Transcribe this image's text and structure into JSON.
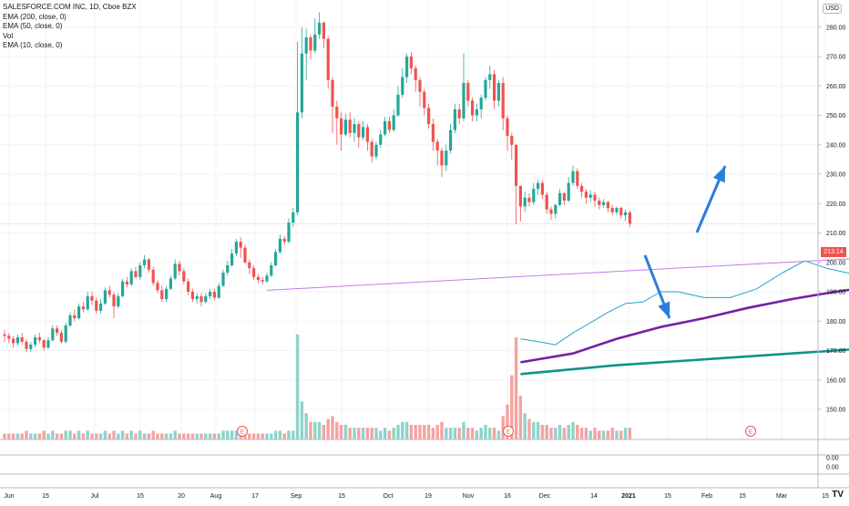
{
  "legend": {
    "symbol": "SALESFORCE.COM INC, 1D, Cboe BZX",
    "ema200": "EMA (200, close, 0)",
    "ema50": "EMA (50, close, 0)",
    "vol": "Vol",
    "ema10": "EMA (10, close, 0)"
  },
  "currency_button": "USD",
  "last_price_label": "213.14",
  "earnings_marker": "E",
  "logo_text": "TV",
  "colors": {
    "up": "#26a69a",
    "down": "#ef5350",
    "vol_up": "#8fd3cb",
    "vol_down": "#f5a3a1",
    "ema200": "#0f938a",
    "ema50": "#7421a5",
    "ema10": "#2aa1c9",
    "trendline": "#c67ae8",
    "arrow": "#2a7ddc",
    "zone": "#e1bdf0"
  },
  "chart_data": {
    "type": "candlestick",
    "x_tick_labels": [
      "Jun",
      "15",
      "Jul",
      "15",
      "20",
      "Aug",
      "17",
      "Sep",
      "15",
      "Oct",
      "19",
      "Nov",
      "16",
      "Dec",
      "14",
      "2021",
      "15",
      "Feb",
      "15",
      "Mar",
      "15"
    ],
    "y_tick_labels": [
      "150.00",
      "160.00",
      "170.00",
      "180.00",
      "190.00",
      "200.00",
      "210.00",
      "220.00",
      "230.00",
      "240.00",
      "250.00",
      "260.00",
      "270.00",
      "280.00",
      "290.00"
    ],
    "ylim": [
      148,
      296
    ],
    "sub_pane_labels": [
      "0.00",
      "0.00"
    ],
    "last_price": 213.14,
    "earnings_markers": [
      "Aug 25 2020",
      "Dec 1 2020",
      "Mar 1 2021"
    ],
    "points": [
      [
        175.5,
        175.0,
        177.0,
        173.0,
        2
      ],
      [
        175.0,
        174.0,
        176.0,
        172.5,
        2
      ],
      [
        174.0,
        172.5,
        175.0,
        171.0,
        2
      ],
      [
        172.5,
        174.5,
        175.5,
        171.5,
        2
      ],
      [
        174.5,
        173.0,
        176.0,
        172.0,
        2
      ],
      [
        173.0,
        170.5,
        174.0,
        169.5,
        3
      ],
      [
        170.5,
        172.0,
        173.0,
        169.5,
        2
      ],
      [
        172.0,
        174.5,
        175.5,
        171.0,
        2
      ],
      [
        174.5,
        173.5,
        176.0,
        172.5,
        2
      ],
      [
        173.5,
        171.0,
        174.0,
        170.0,
        3
      ],
      [
        171.0,
        173.5,
        174.5,
        170.5,
        2
      ],
      [
        173.5,
        177.5,
        178.5,
        173.0,
        3
      ],
      [
        177.5,
        176.0,
        178.5,
        175.0,
        2
      ],
      [
        176.0,
        173.0,
        177.0,
        172.5,
        2
      ],
      [
        173.0,
        178.5,
        179.5,
        172.5,
        3
      ],
      [
        178.5,
        182.0,
        183.0,
        178.0,
        3
      ],
      [
        182.0,
        181.0,
        184.0,
        180.0,
        2
      ],
      [
        181.0,
        185.0,
        186.0,
        180.5,
        3
      ],
      [
        185.0,
        184.0,
        186.5,
        183.0,
        2
      ],
      [
        184.0,
        188.5,
        190.0,
        183.5,
        3
      ],
      [
        188.5,
        187.0,
        190.0,
        185.5,
        2
      ],
      [
        187.0,
        183.5,
        188.0,
        182.5,
        2
      ],
      [
        183.5,
        186.0,
        187.5,
        182.5,
        2
      ],
      [
        186.0,
        190.5,
        191.5,
        185.5,
        3
      ],
      [
        190.5,
        189.0,
        192.0,
        188.0,
        2
      ],
      [
        189.0,
        185.0,
        190.0,
        181.0,
        3
      ],
      [
        185.0,
        188.5,
        189.5,
        184.5,
        2
      ],
      [
        188.5,
        193.5,
        194.5,
        188.0,
        3
      ],
      [
        193.5,
        192.5,
        195.0,
        191.5,
        2
      ],
      [
        192.5,
        197.0,
        198.0,
        192.0,
        3
      ],
      [
        197.0,
        195.0,
        198.5,
        194.5,
        2
      ],
      [
        195.0,
        199.0,
        200.0,
        194.0,
        3
      ],
      [
        199.0,
        201.0,
        202.5,
        198.0,
        2
      ],
      [
        201.0,
        197.5,
        201.5,
        196.5,
        2
      ],
      [
        197.5,
        193.0,
        198.5,
        192.0,
        3
      ],
      [
        193.0,
        190.5,
        194.0,
        189.5,
        2
      ],
      [
        190.5,
        187.5,
        192.0,
        186.5,
        2
      ],
      [
        187.5,
        191.0,
        192.0,
        186.5,
        2
      ],
      [
        191.0,
        194.5,
        195.5,
        190.5,
        2
      ],
      [
        194.5,
        199.5,
        201.0,
        194.0,
        3
      ],
      [
        199.5,
        197.0,
        200.5,
        195.5,
        2
      ],
      [
        197.0,
        193.5,
        198.0,
        192.5,
        2
      ],
      [
        193.5,
        190.0,
        194.5,
        189.0,
        2
      ],
      [
        190.0,
        187.5,
        191.0,
        186.5,
        2
      ],
      [
        187.5,
        188.5,
        189.5,
        186.0,
        2
      ],
      [
        188.5,
        186.5,
        189.5,
        185.0,
        2
      ],
      [
        186.5,
        188.5,
        189.5,
        186.0,
        2
      ],
      [
        188.5,
        190.0,
        191.0,
        187.5,
        2
      ],
      [
        190.0,
        188.0,
        191.0,
        187.0,
        2
      ],
      [
        188.0,
        192.0,
        193.0,
        187.5,
        2
      ],
      [
        192.0,
        196.5,
        197.5,
        191.5,
        3
      ],
      [
        196.5,
        199.0,
        200.5,
        195.5,
        3
      ],
      [
        199.0,
        203.0,
        204.5,
        198.5,
        3
      ],
      [
        203.0,
        207.0,
        208.0,
        202.0,
        3
      ],
      [
        207.0,
        205.0,
        208.5,
        201.5,
        2
      ],
      [
        205.0,
        200.0,
        206.0,
        199.5,
        3
      ],
      [
        200.0,
        198.0,
        201.0,
        196.0,
        2
      ],
      [
        198.0,
        195.0,
        199.0,
        194.0,
        2
      ],
      [
        195.0,
        194.0,
        196.0,
        193.0,
        2
      ],
      [
        194.0,
        193.5,
        195.0,
        192.5,
        2
      ],
      [
        193.5,
        195.5,
        196.5,
        193.0,
        2
      ],
      [
        195.5,
        199.0,
        200.0,
        195.0,
        2
      ],
      [
        199.0,
        203.5,
        204.5,
        198.5,
        3
      ],
      [
        203.5,
        208.0,
        209.5,
        203.0,
        3
      ],
      [
        208.0,
        207.0,
        209.0,
        206.0,
        2
      ],
      [
        207.0,
        213.5,
        215.0,
        206.5,
        3
      ],
      [
        213.5,
        217.0,
        218.5,
        212.0,
        3
      ],
      [
        217.0,
        251.0,
        275.0,
        216.0,
        36
      ],
      [
        251.0,
        271.0,
        280.0,
        249.0,
        13
      ],
      [
        271.0,
        276.5,
        279.5,
        262.0,
        9
      ],
      [
        276.5,
        272.0,
        277.5,
        269.0,
        6
      ],
      [
        272.0,
        277.5,
        283.0,
        271.0,
        6
      ],
      [
        277.5,
        281.5,
        285.0,
        276.0,
        6
      ],
      [
        281.5,
        276.0,
        282.0,
        273.0,
        5
      ],
      [
        276.0,
        262.0,
        277.0,
        259.0,
        7
      ],
      [
        262.0,
        253.0,
        263.0,
        244.0,
        8
      ],
      [
        253.0,
        249.0,
        255.0,
        240.0,
        6
      ],
      [
        249.0,
        243.5,
        251.0,
        238.0,
        5
      ],
      [
        243.5,
        248.5,
        250.5,
        243.0,
        5
      ],
      [
        248.5,
        244.0,
        251.0,
        242.5,
        4
      ],
      [
        244.0,
        247.0,
        249.0,
        241.0,
        4
      ],
      [
        247.0,
        242.5,
        248.0,
        239.0,
        4
      ],
      [
        242.5,
        246.0,
        248.0,
        241.5,
        4
      ],
      [
        246.0,
        241.0,
        247.0,
        238.0,
        4
      ],
      [
        241.0,
        236.0,
        242.0,
        234.0,
        4
      ],
      [
        236.0,
        240.0,
        241.0,
        235.0,
        4
      ],
      [
        240.0,
        243.5,
        245.0,
        239.0,
        3
      ],
      [
        243.5,
        248.0,
        249.5,
        243.0,
        4
      ],
      [
        248.0,
        245.0,
        249.5,
        244.0,
        3
      ],
      [
        245.0,
        250.0,
        252.0,
        244.5,
        4
      ],
      [
        250.0,
        257.0,
        260.0,
        249.5,
        5
      ],
      [
        257.0,
        263.0,
        266.0,
        256.0,
        6
      ],
      [
        263.0,
        270.0,
        271.0,
        261.0,
        6
      ],
      [
        270.0,
        266.0,
        271.5,
        264.0,
        5
      ],
      [
        266.0,
        262.0,
        267.0,
        258.0,
        5
      ],
      [
        262.0,
        258.0,
        263.0,
        253.0,
        5
      ],
      [
        258.0,
        252.5,
        259.0,
        250.0,
        5
      ],
      [
        252.5,
        247.0,
        254.0,
        245.5,
        5
      ],
      [
        247.0,
        241.0,
        249.0,
        238.0,
        4
      ],
      [
        241.0,
        238.0,
        242.0,
        233.0,
        5
      ],
      [
        238.0,
        233.0,
        239.0,
        229.0,
        6
      ],
      [
        233.0,
        238.0,
        240.0,
        231.0,
        4
      ],
      [
        238.0,
        245.0,
        247.0,
        237.0,
        4
      ],
      [
        245.0,
        252.0,
        254.0,
        244.0,
        4
      ],
      [
        252.0,
        249.0,
        254.0,
        247.0,
        4
      ],
      [
        249.0,
        261.0,
        271.0,
        248.0,
        6
      ],
      [
        261.0,
        255.0,
        262.0,
        253.0,
        4
      ],
      [
        255.0,
        250.0,
        256.0,
        248.0,
        4
      ],
      [
        250.0,
        252.0,
        254.0,
        248.0,
        3
      ],
      [
        252.0,
        256.0,
        257.0,
        249.0,
        4
      ],
      [
        256.0,
        262.0,
        263.0,
        255.0,
        5
      ],
      [
        262.0,
        264.0,
        267.0,
        259.0,
        4
      ],
      [
        264.0,
        255.0,
        265.5,
        252.0,
        4
      ],
      [
        255.0,
        261.0,
        262.0,
        253.0,
        3
      ],
      [
        261.0,
        249.0,
        263.0,
        245.0,
        8
      ],
      [
        249.0,
        243.0,
        250.0,
        238.0,
        12
      ],
      [
        243.0,
        240.0,
        244.0,
        235.0,
        22
      ],
      [
        240.0,
        226.0,
        227.0,
        213.0,
        35
      ],
      [
        226.0,
        219.0,
        222.0,
        214.0,
        15
      ],
      [
        219.0,
        222.0,
        224.0,
        217.0,
        9
      ],
      [
        222.0,
        220.5,
        223.5,
        219.0,
        7
      ],
      [
        220.5,
        225.0,
        227.0,
        219.5,
        6
      ],
      [
        225.0,
        227.0,
        228.0,
        223.0,
        6
      ],
      [
        227.0,
        223.0,
        228.0,
        221.5,
        5
      ],
      [
        223.0,
        218.0,
        224.0,
        216.5,
        5
      ],
      [
        218.0,
        216.5,
        219.0,
        214.5,
        4
      ],
      [
        216.5,
        219.5,
        220.0,
        215.0,
        4
      ],
      [
        219.5,
        223.5,
        225.0,
        219.0,
        5
      ],
      [
        223.5,
        221.0,
        224.0,
        219.5,
        4
      ],
      [
        221.0,
        227.0,
        229.0,
        220.5,
        5
      ],
      [
        227.0,
        231.0,
        233.0,
        226.0,
        6
      ],
      [
        231.0,
        226.0,
        232.0,
        225.0,
        5
      ],
      [
        226.0,
        224.0,
        227.0,
        222.0,
        4
      ],
      [
        224.0,
        222.0,
        225.0,
        220.0,
        4
      ],
      [
        222.0,
        223.0,
        224.5,
        220.5,
        3
      ],
      [
        223.0,
        221.0,
        224.0,
        219.0,
        4
      ],
      [
        221.0,
        219.5,
        222.0,
        218.0,
        3
      ],
      [
        219.5,
        220.5,
        221.5,
        218.5,
        3
      ],
      [
        220.5,
        218.5,
        221.0,
        217.0,
        3
      ],
      [
        218.5,
        217.0,
        219.5,
        216.0,
        4
      ],
      [
        217.0,
        218.5,
        219.0,
        216.0,
        3
      ],
      [
        218.5,
        216.0,
        219.0,
        215.0,
        3
      ],
      [
        216.0,
        217.0,
        218.0,
        214.0,
        4
      ],
      [
        217.0,
        213.14,
        217.5,
        212.0,
        4
      ]
    ],
    "ema10_path": [
      [
        118,
        174
      ],
      [
        122,
        173
      ],
      [
        126,
        172
      ],
      [
        130,
        176
      ],
      [
        134,
        179.5
      ],
      [
        138,
        183
      ],
      [
        142,
        186
      ],
      [
        146,
        186.5
      ],
      [
        150,
        190
      ],
      [
        154,
        190
      ],
      [
        160,
        188
      ],
      [
        166,
        188
      ],
      [
        172,
        191
      ],
      [
        178,
        196.5
      ],
      [
        183,
        200.5
      ],
      [
        188,
        198
      ],
      [
        194,
        196
      ],
      [
        199,
        198
      ],
      [
        204,
        200
      ],
      [
        209,
        206.5
      ],
      [
        213,
        228
      ],
      [
        217,
        244
      ],
      [
        221,
        252
      ],
      [
        225,
        250
      ],
      [
        229,
        247
      ],
      [
        234,
        244
      ],
      [
        239,
        242
      ],
      [
        244,
        243
      ],
      [
        249,
        247
      ],
      [
        254,
        254
      ],
      [
        258,
        260
      ],
      [
        262,
        263
      ],
      [
        266,
        262
      ],
      [
        270,
        258
      ],
      [
        274,
        251
      ],
      [
        278,
        243.5
      ],
      [
        282,
        241
      ],
      [
        286,
        243
      ],
      [
        290,
        248
      ],
      [
        294,
        253
      ],
      [
        298,
        256
      ],
      [
        302,
        256
      ],
      [
        306,
        258
      ],
      [
        310,
        253
      ],
      [
        314,
        250
      ],
      [
        317,
        248
      ],
      [
        320,
        240
      ],
      [
        323,
        231
      ],
      [
        326,
        226
      ],
      [
        330,
        222.5
      ],
      [
        333,
        222
      ],
      [
        337,
        223
      ],
      [
        342,
        224
      ],
      [
        347,
        226
      ],
      [
        352,
        226
      ],
      [
        356,
        225
      ],
      [
        360,
        223
      ],
      [
        363,
        221
      ],
      [
        366,
        219
      ],
      [
        369,
        218.5
      ]
    ],
    "ema50_path": [
      [
        118,
        166
      ],
      [
        130,
        169
      ],
      [
        140,
        174
      ],
      [
        150,
        178
      ],
      [
        160,
        181
      ],
      [
        170,
        184.5
      ],
      [
        180,
        187.5
      ],
      [
        190,
        190
      ],
      [
        200,
        192
      ],
      [
        208,
        194
      ],
      [
        214,
        200
      ],
      [
        220,
        208
      ],
      [
        230,
        217
      ],
      [
        240,
        223
      ],
      [
        250,
        228
      ],
      [
        260,
        234
      ],
      [
        270,
        238
      ],
      [
        280,
        242
      ],
      [
        290,
        244
      ],
      [
        300,
        244.5
      ],
      [
        310,
        246
      ],
      [
        318,
        249
      ],
      [
        325,
        247
      ],
      [
        333,
        241
      ],
      [
        340,
        238
      ],
      [
        350,
        234
      ],
      [
        360,
        230.5
      ],
      [
        369,
        228
      ]
    ],
    "ema200_path": [
      [
        118,
        162
      ],
      [
        140,
        165
      ],
      [
        160,
        167
      ],
      [
        180,
        169
      ],
      [
        200,
        171
      ],
      [
        214,
        174
      ],
      [
        220,
        180
      ],
      [
        230,
        188
      ],
      [
        240,
        192
      ],
      [
        250,
        196
      ],
      [
        260,
        200
      ],
      [
        270,
        203.5
      ],
      [
        280,
        207
      ],
      [
        290,
        209.5
      ],
      [
        300,
        212
      ],
      [
        310,
        214
      ],
      [
        320,
        215
      ],
      [
        330,
        215.5
      ],
      [
        340,
        216
      ],
      [
        350,
        216
      ],
      [
        360,
        215.8
      ],
      [
        369,
        215.5
      ]
    ],
    "trendlines": [
      {
        "from": [
          210,
          271
        ],
        "to": [
          450,
          211
        ]
      },
      {
        "from": [
          60,
          190.5
        ],
        "to": [
          490,
          225
        ]
      }
    ],
    "zone": {
      "from_index": 370.5,
      "to_index": 437,
      "low": 213.0,
      "high": 219.0
    }
  }
}
